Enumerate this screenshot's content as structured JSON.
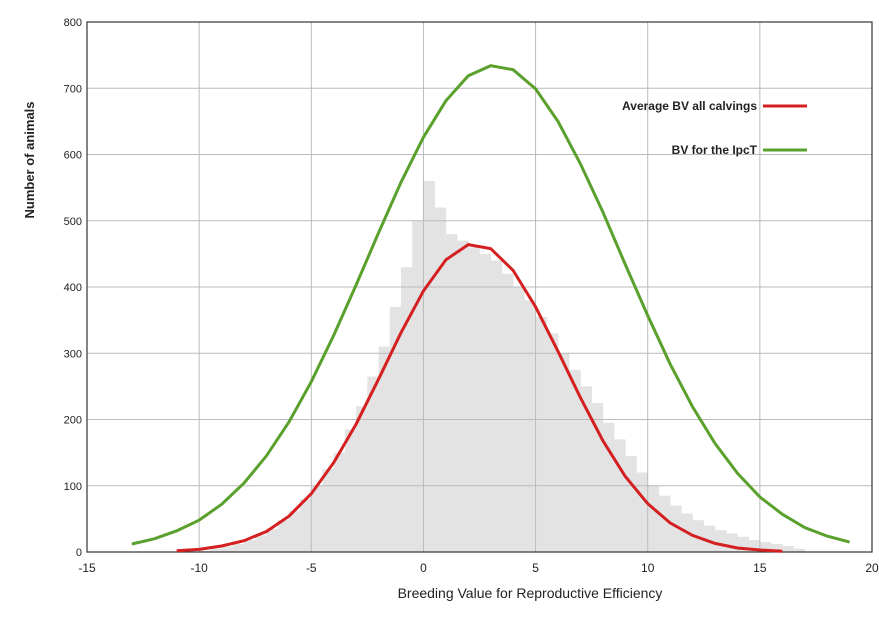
{
  "chart_data": {
    "type": "histogram",
    "xlabel": "Breeding Value for Reproductive Efficiency",
    "ylabel": "Number of  animals",
    "bins": [
      -10,
      -9.5,
      -9,
      -8.5,
      -8,
      -7.5,
      -7,
      -6.5,
      -6,
      -5.5,
      -5,
      -4.5,
      -4,
      -3.5,
      -3,
      -2.5,
      -2,
      -1.5,
      -1,
      -0.5,
      0,
      0.5,
      1,
      1.5,
      2,
      2.5,
      3,
      3.5,
      4,
      4.5,
      5,
      5.5,
      6,
      6.5,
      7,
      7.5,
      8,
      8.5,
      9,
      9.5,
      10,
      10.5,
      11,
      11.5,
      12,
      12.5,
      13,
      13.5,
      14,
      14.5,
      15,
      15.5,
      16,
      16.5,
      17
    ],
    "values": [
      2,
      5,
      8,
      12,
      18,
      25,
      35,
      48,
      62,
      80,
      100,
      125,
      150,
      185,
      220,
      265,
      310,
      370,
      430,
      500,
      560,
      520,
      480,
      470,
      460,
      450,
      440,
      420,
      400,
      380,
      355,
      330,
      300,
      275,
      250,
      225,
      195,
      170,
      145,
      120,
      100,
      85,
      70,
      58,
      48,
      40,
      33,
      28,
      23,
      18,
      15,
      12,
      9,
      5
    ],
    "color": "#e3e3e3",
    "series": [
      {
        "name": "Average BV all calvings",
        "color": "#d42020",
        "x": [
          -11,
          -10,
          -9,
          -8,
          -7,
          -6,
          -5,
          -4,
          -3,
          -2,
          -1,
          0,
          1,
          2,
          3,
          4,
          5,
          6,
          7,
          8,
          9,
          10,
          11,
          12,
          13,
          14,
          15,
          16
        ],
        "values": [
          2,
          4,
          9,
          17,
          31,
          54,
          88,
          135,
          193,
          261,
          331,
          394,
          441,
          464,
          458,
          425,
          370,
          303,
          233,
          168,
          114,
          73,
          44,
          25,
          13,
          6,
          3,
          1
        ]
      },
      {
        "name": "BV for the IpcT",
        "color": "#5aa02c",
        "x": [
          -13,
          -12,
          -11,
          -10,
          -9,
          -8,
          -7,
          -6,
          -5,
          -4,
          -3,
          -2,
          -1,
          0,
          1,
          2,
          3,
          4,
          5,
          6,
          7,
          8,
          9,
          10,
          11,
          12,
          13,
          14,
          15,
          16,
          17,
          18,
          19
        ],
        "values": [
          12,
          20,
          32,
          48,
          72,
          104,
          145,
          196,
          257,
          327,
          403,
          482,
          558,
          626,
          681,
          719,
          734,
          728,
          699,
          650,
          586,
          513,
          434,
          357,
          284,
          219,
          164,
          119,
          83,
          57,
          37,
          24,
          15
        ]
      }
    ],
    "xlim": [
      -15,
      20
    ],
    "xticks": [
      -15,
      -10,
      -5,
      0,
      5,
      10,
      15,
      20
    ],
    "ylim": [
      0,
      800
    ],
    "yticks": [
      0,
      100,
      200,
      300,
      400,
      500,
      600,
      700,
      800
    ],
    "grid": true,
    "legend": "upper right"
  }
}
